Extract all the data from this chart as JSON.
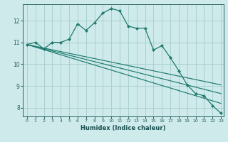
{
  "xlabel": "Humidex (Indice chaleur)",
  "ylabel": "",
  "bg_color": "#ceeaea",
  "grid_color": "#aad0d0",
  "line_color": "#1e7a6e",
  "xlim": [
    -0.5,
    23.3
  ],
  "ylim": [
    7.6,
    12.75
  ],
  "xticks": [
    0,
    1,
    2,
    3,
    4,
    5,
    6,
    7,
    8,
    9,
    10,
    11,
    12,
    13,
    14,
    15,
    16,
    17,
    18,
    19,
    20,
    21,
    22,
    23
  ],
  "yticks": [
    8,
    9,
    10,
    11,
    12
  ],
  "straight_lines": [
    {
      "x": [
        0,
        23
      ],
      "y": [
        10.9,
        9.05
      ]
    },
    {
      "x": [
        0,
        23
      ],
      "y": [
        10.9,
        8.65
      ]
    },
    {
      "x": [
        0,
        23
      ],
      "y": [
        10.9,
        8.2
      ]
    }
  ],
  "main_line": {
    "x": [
      0,
      1,
      2,
      3,
      4,
      5,
      6,
      7,
      8,
      9,
      10,
      11,
      12,
      13,
      14,
      15,
      16,
      17,
      18,
      19,
      20,
      21,
      22,
      23
    ],
    "y": [
      10.9,
      11.0,
      10.7,
      11.0,
      11.0,
      11.15,
      11.85,
      11.55,
      11.9,
      12.35,
      12.55,
      12.45,
      11.75,
      11.65,
      11.65,
      10.65,
      10.85,
      10.3,
      9.7,
      9.05,
      8.65,
      8.55,
      8.1,
      7.75
    ]
  }
}
